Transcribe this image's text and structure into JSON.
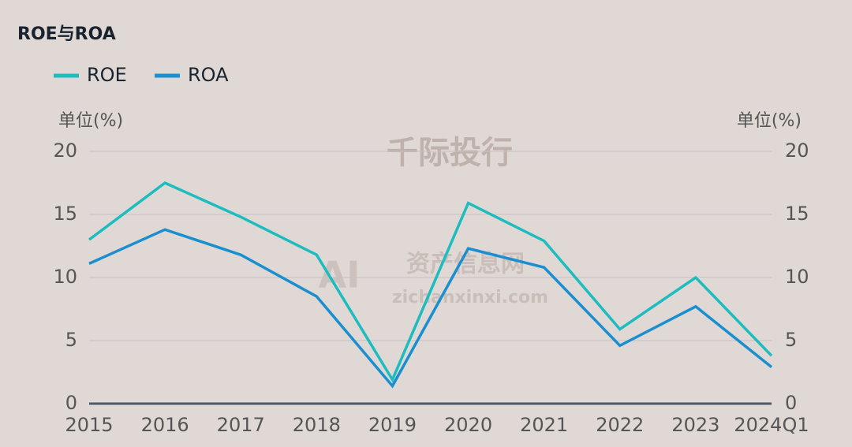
{
  "chart_data": {
    "type": "line",
    "title": "ROE与ROA",
    "y_label": "单位(%)",
    "y2_label": "单位(%)",
    "categories": [
      "2015",
      "2016",
      "2017",
      "2018",
      "2019",
      "2020",
      "2021",
      "2022",
      "2023",
      "2024Q1"
    ],
    "series": [
      {
        "name": "ROE",
        "color": "#1dbcbf",
        "values": [
          13.0,
          17.5,
          14.8,
          11.8,
          1.9,
          15.9,
          12.9,
          5.9,
          10.0,
          3.8
        ]
      },
      {
        "name": "ROA",
        "color": "#1a8fcf",
        "axis": "y2",
        "values": [
          11.1,
          13.8,
          11.8,
          8.5,
          1.4,
          12.3,
          10.8,
          4.6,
          7.7,
          2.9
        ]
      }
    ],
    "ylim": [
      0,
      20
    ],
    "yticks": [
      0,
      5,
      10,
      15,
      20
    ],
    "y2lim": [
      0,
      20
    ],
    "y2ticks": [
      0,
      5,
      10,
      15,
      20
    ],
    "grid": true,
    "legend": "top-left",
    "watermarks": [
      "千际投行",
      "AI",
      "资产信息网",
      "zichanxinxi.com"
    ]
  }
}
